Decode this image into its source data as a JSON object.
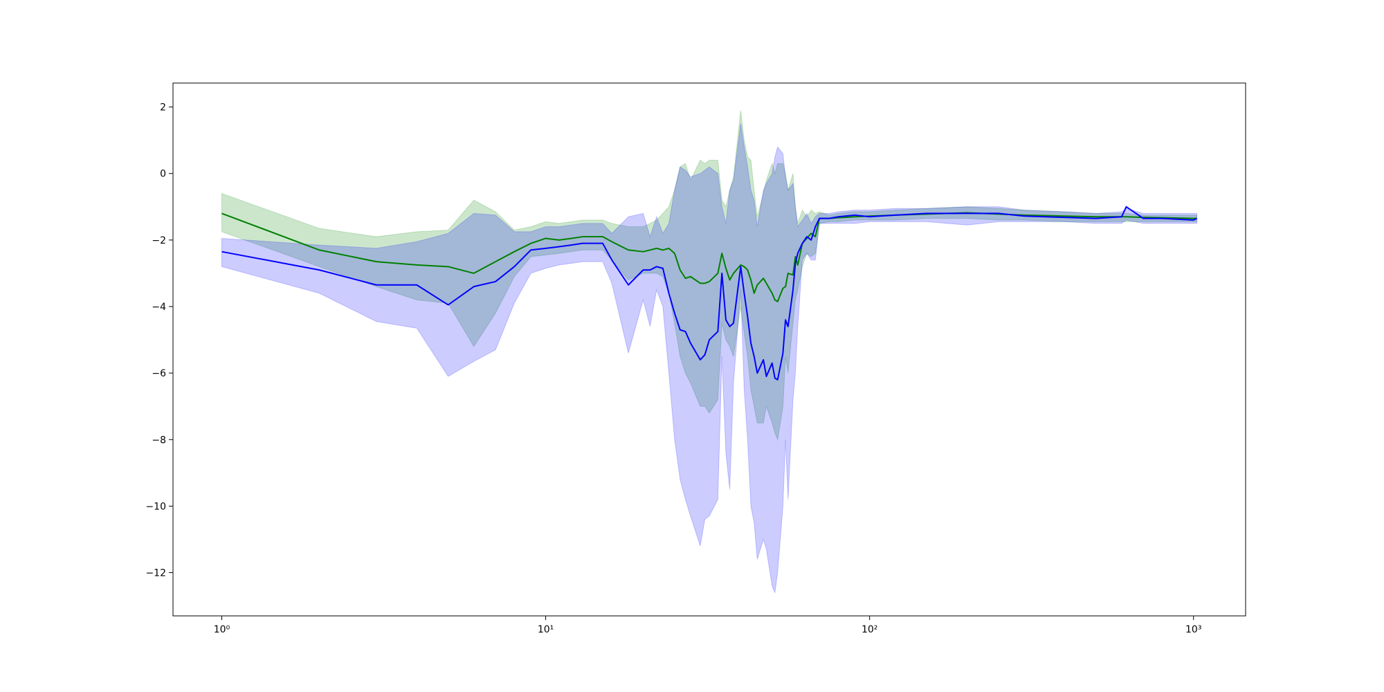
{
  "chart_data": {
    "type": "line",
    "xscale": "log",
    "xlim": [
      0.707,
      1448
    ],
    "ylim": [
      -13.3,
      2.72
    ],
    "xticks": [
      {
        "value": 1,
        "label": "10⁰"
      },
      {
        "value": 10,
        "label": "10¹"
      },
      {
        "value": 100,
        "label": "10²"
      },
      {
        "value": 1000,
        "label": "10³"
      }
    ],
    "yticks": [
      2,
      0,
      {
        "value": -2,
        "label": "−2"
      },
      {
        "value": -4,
        "label": "−4"
      },
      {
        "value": -6,
        "label": "−6"
      },
      {
        "value": -8,
        "label": "−8"
      },
      {
        "value": -10,
        "label": "−10"
      },
      {
        "value": -12,
        "label": "−12"
      }
    ],
    "grid": false,
    "band_opacity": 0.2,
    "x": [
      1,
      2,
      3,
      4,
      5,
      6,
      7,
      8,
      9,
      10,
      11,
      12,
      13,
      15,
      16,
      18,
      20,
      21,
      22,
      23,
      24,
      25,
      26,
      27,
      28,
      30,
      31,
      32,
      34,
      35,
      36,
      37,
      38,
      40,
      41,
      42,
      43,
      44,
      45,
      47,
      48,
      50,
      51,
      52,
      54,
      55,
      56,
      58,
      59,
      60,
      62,
      64,
      66,
      68,
      70,
      75,
      80,
      90,
      100,
      120,
      150,
      200,
      250,
      300,
      400,
      500,
      600,
      620,
      700,
      800,
      1000,
      1024
    ],
    "series": [
      {
        "color": "#008000",
        "values": [
          -1.2,
          -2.3,
          -2.65,
          -2.75,
          -2.8,
          -3.0,
          -2.65,
          -2.35,
          -2.1,
          -1.95,
          -2.0,
          -1.95,
          -1.9,
          -1.9,
          -2.05,
          -2.3,
          -2.35,
          -2.3,
          -2.25,
          -2.3,
          -2.25,
          -2.4,
          -2.9,
          -3.15,
          -3.1,
          -3.3,
          -3.3,
          -3.25,
          -3.0,
          -2.4,
          -2.85,
          -3.2,
          -3.0,
          -2.75,
          -2.8,
          -2.9,
          -3.2,
          -3.6,
          -3.35,
          -3.15,
          -3.3,
          -3.6,
          -3.8,
          -3.85,
          -3.45,
          -3.4,
          -3.0,
          -3.05,
          -2.5,
          -2.75,
          -2.1,
          -1.95,
          -1.8,
          -1.9,
          -1.35,
          -1.35,
          -1.33,
          -1.3,
          -1.28,
          -1.25,
          -1.22,
          -1.18,
          -1.22,
          -1.25,
          -1.28,
          -1.3,
          -1.3,
          -1.3,
          -1.32,
          -1.33,
          -1.35,
          -1.35
        ],
        "upper": [
          -0.6,
          -1.65,
          -1.9,
          -1.75,
          -1.7,
          -0.8,
          -1.15,
          -1.7,
          -1.6,
          -1.45,
          -1.5,
          -1.45,
          -1.4,
          -1.4,
          -1.5,
          -1.6,
          -1.6,
          -1.5,
          -1.4,
          -1.2,
          -1.0,
          -0.5,
          0.2,
          0.3,
          -0.2,
          0.4,
          0.3,
          0.4,
          0.4,
          -0.8,
          -1.0,
          -0.5,
          -0.1,
          1.9,
          1.0,
          0.5,
          0.4,
          -0.5,
          -1.3,
          -0.6,
          -0.2,
          0.3,
          0.0,
          0.3,
          0.3,
          0.0,
          -0.5,
          0.0,
          -1.0,
          -1.5,
          -1.1,
          -1.3,
          -1.1,
          -1.2,
          -1.15,
          -1.25,
          -1.2,
          -1.15,
          -1.15,
          -1.1,
          -1.05,
          -1.0,
          -1.05,
          -1.1,
          -1.15,
          -1.2,
          -1.2,
          -1.2,
          -1.25,
          -1.25,
          -1.25,
          -1.25
        ],
        "lower": [
          -1.75,
          -2.8,
          -3.4,
          -3.8,
          -3.9,
          -5.2,
          -4.2,
          -3.1,
          -2.5,
          -2.45,
          -2.4,
          -2.35,
          -2.3,
          -2.3,
          -2.6,
          -3.2,
          -3.0,
          -3.0,
          -3.0,
          -3.1,
          -3.6,
          -4.5,
          -5.5,
          -6.0,
          -6.3,
          -7.0,
          -7.0,
          -7.2,
          -6.8,
          -4.5,
          -5.0,
          -5.2,
          -5.5,
          -4.0,
          -4.8,
          -5.5,
          -6.5,
          -7.0,
          -7.5,
          -7.5,
          -7.0,
          -7.5,
          -7.8,
          -8.0,
          -7.0,
          -5.5,
          -6.0,
          -4.5,
          -3.8,
          -3.5,
          -2.8,
          -2.4,
          -2.5,
          -2.4,
          -1.5,
          -1.45,
          -1.45,
          -1.4,
          -1.4,
          -1.4,
          -1.35,
          -1.35,
          -1.4,
          -1.4,
          -1.45,
          -1.45,
          -1.45,
          -1.45,
          -1.45,
          -1.45,
          -1.45,
          -1.45
        ]
      },
      {
        "color": "#0000ff",
        "values": [
          -2.35,
          -2.9,
          -3.35,
          -3.35,
          -3.95,
          -3.4,
          -3.25,
          -2.8,
          -2.3,
          -2.25,
          -2.2,
          -2.15,
          -2.1,
          -2.1,
          -2.6,
          -3.35,
          -2.9,
          -2.9,
          -2.8,
          -2.85,
          -3.6,
          -4.2,
          -4.7,
          -4.75,
          -5.1,
          -5.6,
          -5.45,
          -5.0,
          -4.75,
          -3.0,
          -4.4,
          -4.6,
          -4.5,
          -2.8,
          -3.6,
          -4.3,
          -5.1,
          -5.5,
          -6.0,
          -5.6,
          -6.1,
          -5.7,
          -6.15,
          -6.2,
          -5.4,
          -4.4,
          -4.6,
          -3.5,
          -2.7,
          -2.4,
          -2.1,
          -1.9,
          -2.0,
          -1.6,
          -1.35,
          -1.35,
          -1.3,
          -1.25,
          -1.3,
          -1.25,
          -1.2,
          -1.2,
          -1.2,
          -1.28,
          -1.32,
          -1.35,
          -1.3,
          -1.0,
          -1.35,
          -1.35,
          -1.4,
          -1.35
        ],
        "upper": [
          -1.95,
          -2.15,
          -2.25,
          -2.05,
          -1.8,
          -1.2,
          -1.25,
          -1.75,
          -1.75,
          -1.6,
          -1.6,
          -1.55,
          -1.5,
          -1.5,
          -1.8,
          -1.3,
          -1.2,
          -1.9,
          -1.3,
          -1.8,
          -1.5,
          -0.5,
          0.2,
          0.1,
          -0.1,
          0.0,
          0.1,
          0.2,
          0.0,
          -1.0,
          -1.5,
          -0.5,
          -0.2,
          1.5,
          0.8,
          0.2,
          -0.5,
          -0.8,
          -1.6,
          -0.5,
          -0.3,
          0.0,
          0.5,
          0.8,
          0.6,
          -0.1,
          -0.5,
          -0.3,
          -1.0,
          -1.6,
          -1.4,
          -1.2,
          -1.5,
          -1.3,
          -1.2,
          -1.2,
          -1.15,
          -1.1,
          -1.1,
          -1.05,
          -1.05,
          -1.0,
          -1.0,
          -1.1,
          -1.15,
          -1.2,
          -1.15,
          -1.05,
          -1.2,
          -1.2,
          -1.2,
          -1.2
        ],
        "lower": [
          -2.8,
          -3.6,
          -4.45,
          -4.65,
          -6.1,
          -5.65,
          -5.3,
          -3.9,
          -3.0,
          -2.85,
          -2.75,
          -2.7,
          -2.65,
          -2.65,
          -3.3,
          -5.4,
          -3.8,
          -4.6,
          -3.5,
          -4.0,
          -6.0,
          -8.0,
          -9.2,
          -9.8,
          -10.3,
          -11.2,
          -10.4,
          -10.3,
          -9.8,
          -5.5,
          -8.4,
          -9.5,
          -6.3,
          -3.5,
          -6.5,
          -8.0,
          -10.0,
          -10.5,
          -11.6,
          -11.0,
          -11.3,
          -12.4,
          -12.6,
          -12.0,
          -10.0,
          -8.0,
          -9.8,
          -6.8,
          -6.0,
          -4.6,
          -2.6,
          -2.4,
          -2.6,
          -2.6,
          -1.5,
          -1.5,
          -1.5,
          -1.5,
          -1.45,
          -1.45,
          -1.45,
          -1.55,
          -1.45,
          -1.45,
          -1.45,
          -1.5,
          -1.5,
          -1.4,
          -1.5,
          -1.5,
          -1.5,
          -1.5
        ]
      }
    ]
  }
}
